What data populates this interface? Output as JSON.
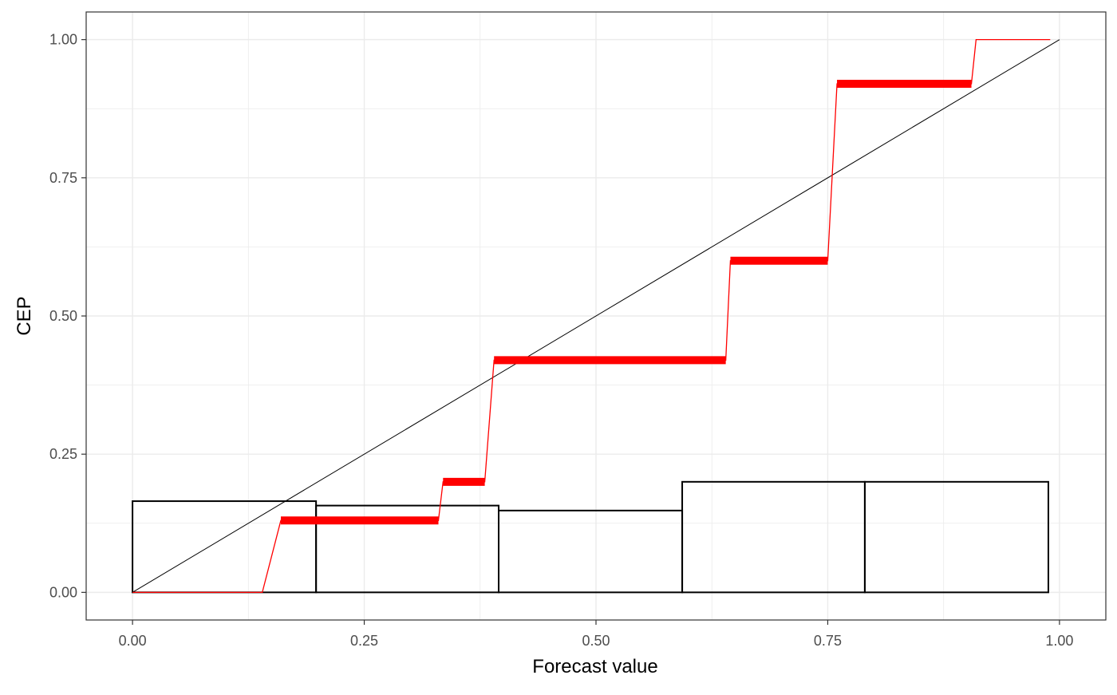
{
  "chart_data": {
    "type": "line",
    "title": "",
    "xlabel": "Forecast value",
    "ylabel": "CEP",
    "xlim": [
      -0.05,
      1.05
    ],
    "ylim": [
      -0.05,
      1.05
    ],
    "x_ticks": [
      0,
      0.25,
      0.5,
      0.75,
      1
    ],
    "x_tick_labels": [
      "0.00",
      "0.25",
      "0.50",
      "0.75",
      "1.00"
    ],
    "y_ticks": [
      0,
      0.25,
      0.5,
      0.75,
      1
    ],
    "y_tick_labels": [
      "0.00",
      "0.25",
      "0.50",
      "0.75",
      "1.00"
    ],
    "grid": true,
    "legend": "none",
    "colors": {
      "cep_line": "#ff0000",
      "diagonal": "#000000",
      "histogram_outline": "#000000",
      "grid": "#ebebeb",
      "panel_border": "#333333"
    },
    "diagonal": [
      [
        0,
        0
      ],
      [
        1,
        1
      ]
    ],
    "cep_steps": [
      {
        "x0": 0.0,
        "x1": 0.14,
        "y": 0.0,
        "emphasis": false
      },
      {
        "x0": 0.16,
        "x1": 0.33,
        "y": 0.13,
        "emphasis": true
      },
      {
        "x0": 0.335,
        "x1": 0.38,
        "y": 0.2,
        "emphasis": true
      },
      {
        "x0": 0.39,
        "x1": 0.64,
        "y": 0.42,
        "emphasis": true
      },
      {
        "x0": 0.645,
        "x1": 0.75,
        "y": 0.6,
        "emphasis": true
      },
      {
        "x0": 0.76,
        "x1": 0.905,
        "y": 0.92,
        "emphasis": true
      },
      {
        "x0": 0.91,
        "x1": 0.99,
        "y": 1.0,
        "emphasis": false
      }
    ],
    "histogram": [
      {
        "x0": 0.0,
        "x1": 0.198,
        "height": 0.165
      },
      {
        "x0": 0.198,
        "x1": 0.395,
        "height": 0.157
      },
      {
        "x0": 0.395,
        "x1": 0.593,
        "height": 0.148
      },
      {
        "x0": 0.593,
        "x1": 0.79,
        "height": 0.2
      },
      {
        "x0": 0.79,
        "x1": 0.988,
        "height": 0.2
      }
    ]
  }
}
